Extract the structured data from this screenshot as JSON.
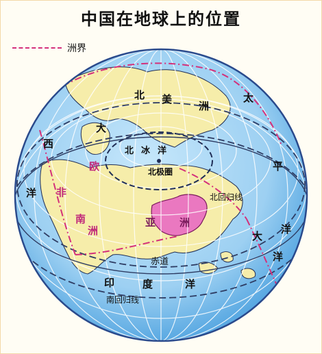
{
  "title": "中国在地球上的位置",
  "legend": {
    "label": "洲界"
  },
  "colors": {
    "ocean": "#9dd0f2",
    "ocean_dark": "#5aa9e2",
    "land": "#f6edaa",
    "china": "#ea78c0",
    "border": "#1f2d55",
    "grid": "#ffffff",
    "continent_boundary": "#d4307a",
    "tropic": "#2e3c63"
  },
  "labels": {
    "north_america_1": "北",
    "north_america_2": "美",
    "north_america_3": "洲",
    "atlantic_1": "大",
    "atlantic_2": "西",
    "atlantic_3": "洋",
    "arctic_1": "北",
    "arctic_2": "冰",
    "arctic_3": "洋",
    "pole": "北极圈",
    "europe": "欧",
    "africa": "非",
    "asia_1": "亚",
    "asia_2": "洲",
    "pacific_1": "太",
    "pacific_2": "平",
    "pacific_3": "洋",
    "pacific_side": "大",
    "pacific_char": "洋",
    "tropic_cancer": "北回归线",
    "equator": "赤道",
    "indian_1": "印",
    "indian_2": "度",
    "indian_3": "洋",
    "tropic_capricorn": "南回归线",
    "nan_left": "南",
    "nan_right": "洲"
  }
}
